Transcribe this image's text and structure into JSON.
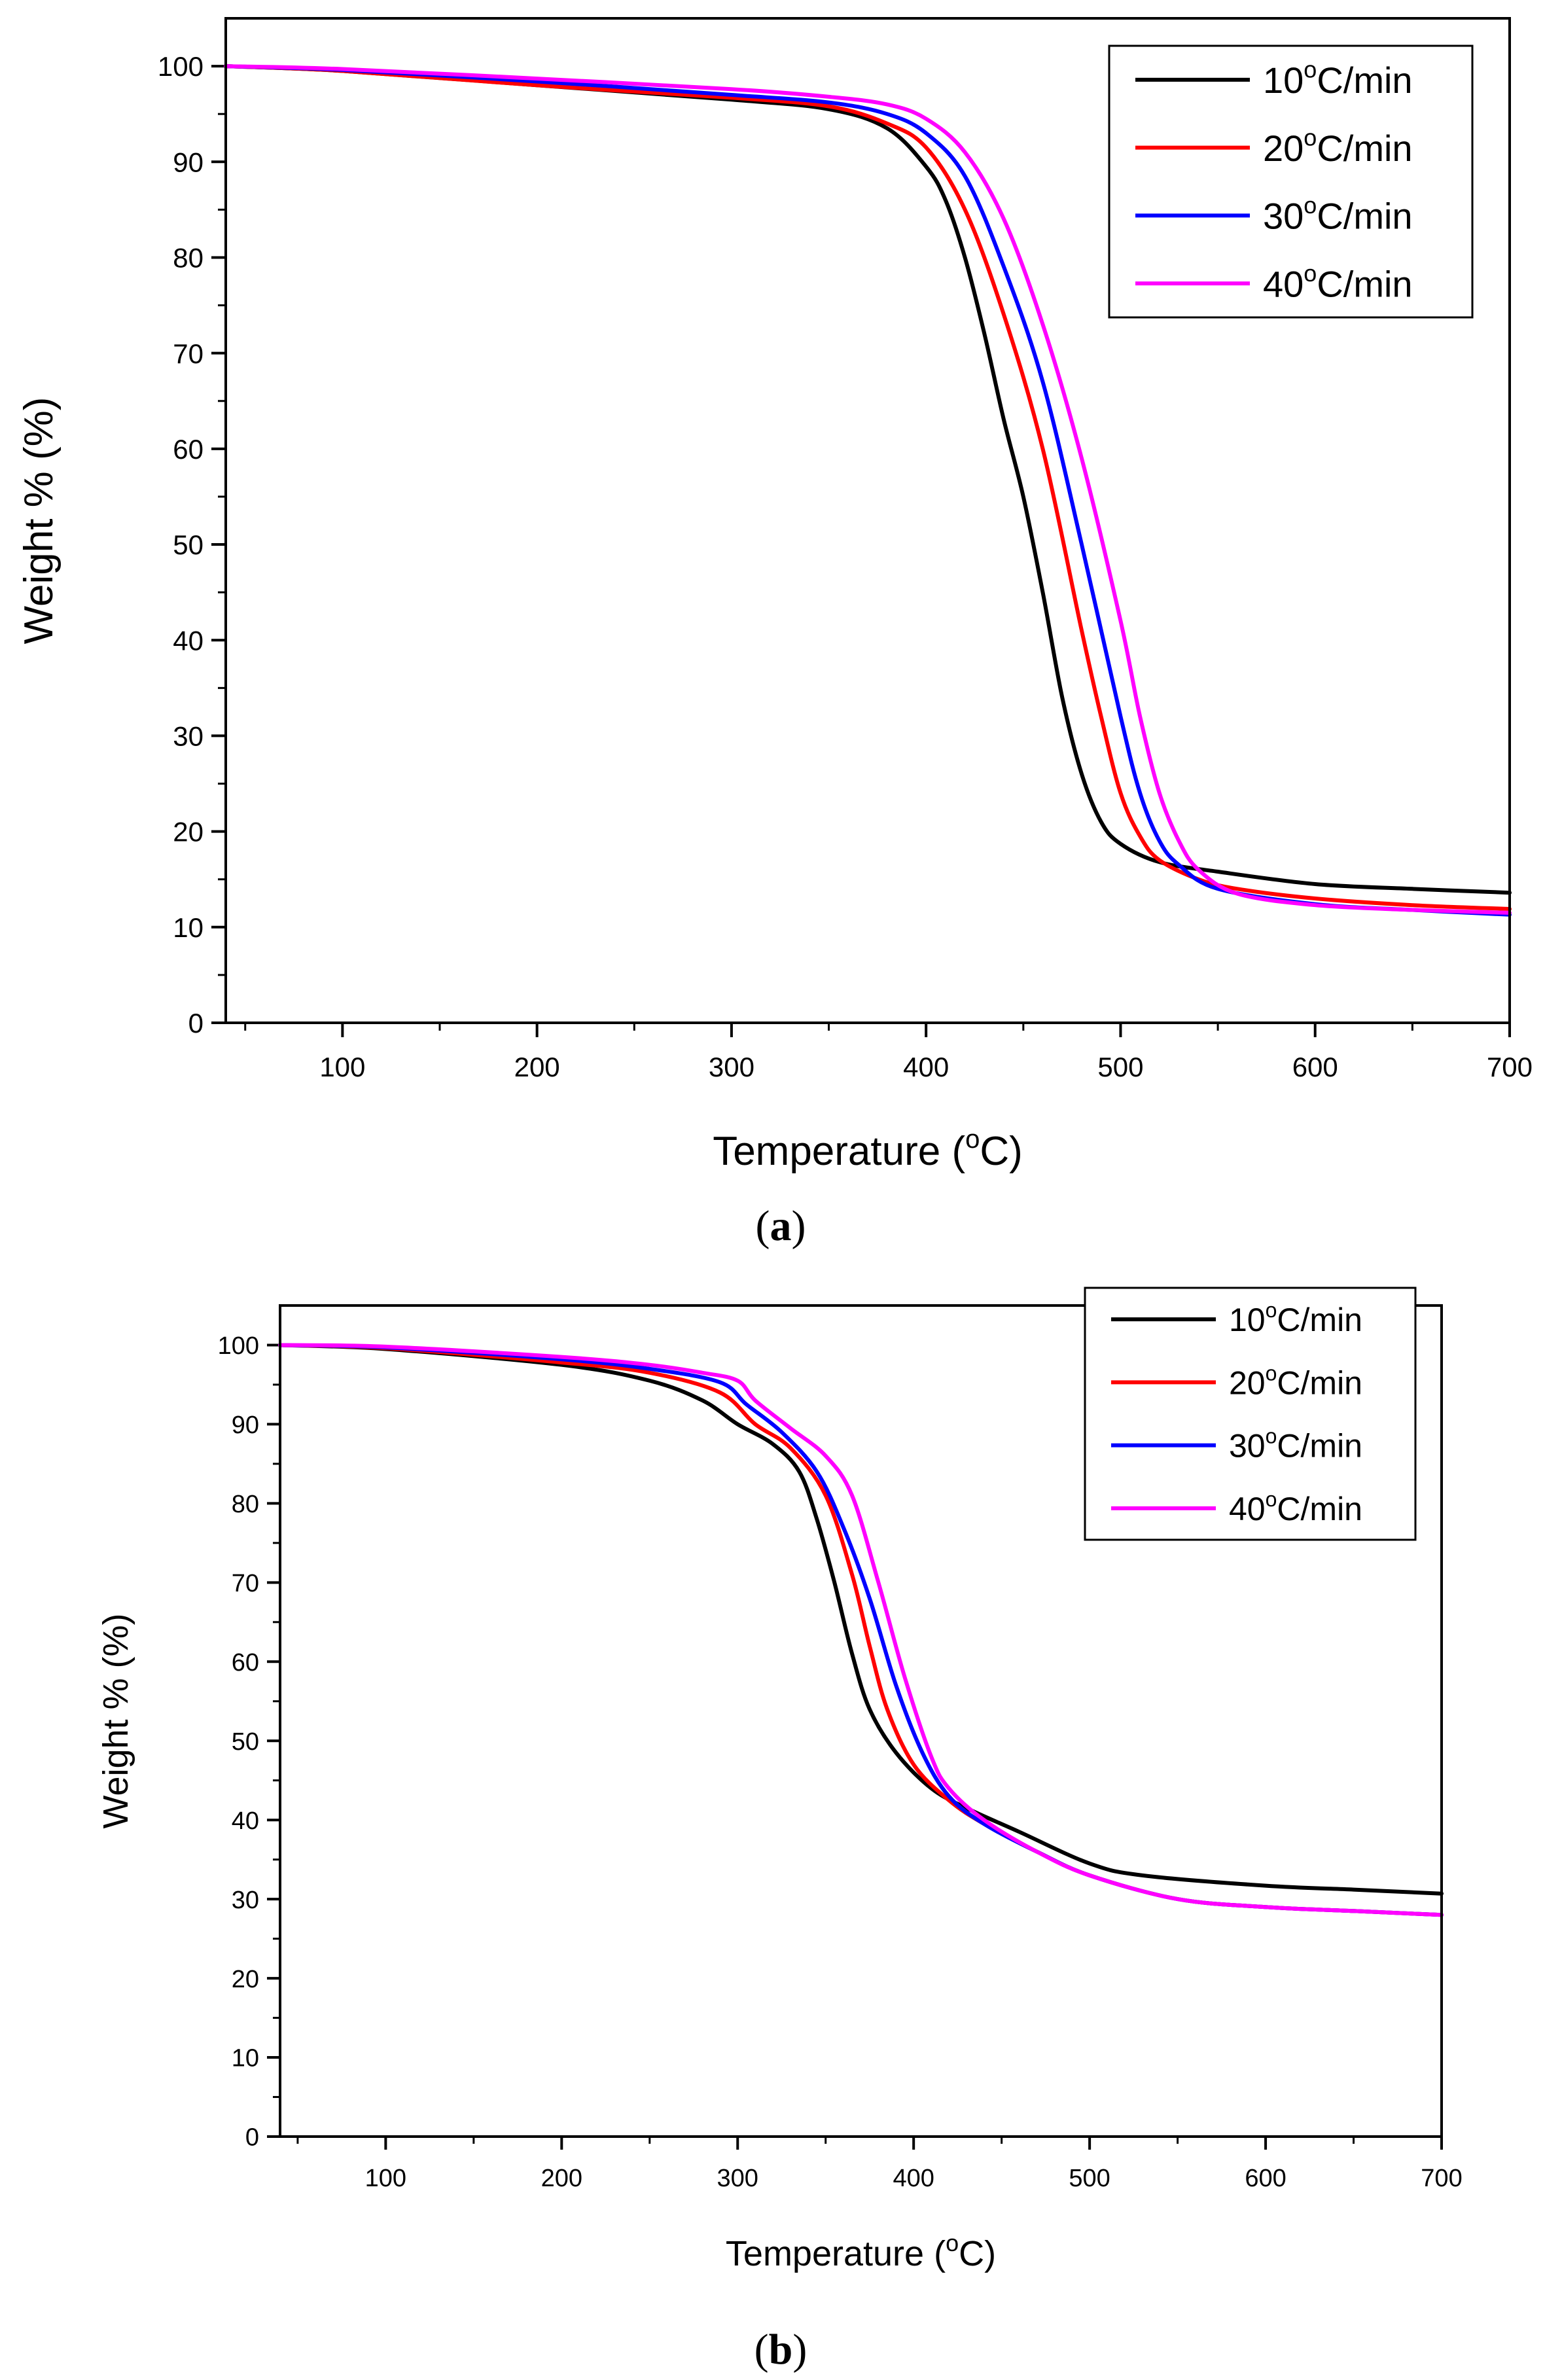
{
  "chart_data": [
    {
      "type": "line",
      "panel_label": "a",
      "xlabel": "Temperature (°C)",
      "xlabel_parts": {
        "pre": "Temperature (",
        "sup": "o",
        "post": "C)"
      },
      "ylabel": "Weight % (%)",
      "xlim": [
        40,
        700
      ],
      "ylim": [
        0,
        105
      ],
      "xticks": [
        100,
        200,
        300,
        400,
        500,
        600,
        700
      ],
      "yticks": [
        0,
        10,
        20,
        30,
        40,
        50,
        60,
        70,
        80,
        90,
        100
      ],
      "legend_position": "top-right",
      "series": [
        {
          "name": "10°C/min",
          "label_parts": {
            "pre": "10",
            "sup": "o",
            "post": "C/min"
          },
          "color": "#000000",
          "points": [
            [
              40,
              100
            ],
            [
              100,
              99.5
            ],
            [
              200,
              98
            ],
            [
              300,
              96.5
            ],
            [
              350,
              95.5
            ],
            [
              380,
              93.5
            ],
            [
              400,
              89.5
            ],
            [
              410,
              86
            ],
            [
              420,
              80
            ],
            [
              430,
              72
            ],
            [
              440,
              63
            ],
            [
              450,
              55
            ],
            [
              460,
              45
            ],
            [
              470,
              34
            ],
            [
              480,
              26
            ],
            [
              490,
              21
            ],
            [
              500,
              18.7
            ],
            [
              520,
              16.8
            ],
            [
              550,
              15.8
            ],
            [
              600,
              14.5
            ],
            [
              650,
              14
            ],
            [
              700,
              13.6
            ]
          ]
        },
        {
          "name": "20°C/min",
          "label_parts": {
            "pre": "20",
            "sup": "o",
            "post": "C/min"
          },
          "color": "#ff0000",
          "points": [
            [
              40,
              100
            ],
            [
              100,
              99.5
            ],
            [
              200,
              98
            ],
            [
              300,
              96.7
            ],
            [
              350,
              95.8
            ],
            [
              380,
              94
            ],
            [
              400,
              91.5
            ],
            [
              420,
              85
            ],
            [
              440,
              74
            ],
            [
              460,
              60
            ],
            [
              480,
              41
            ],
            [
              490,
              32
            ],
            [
              500,
              24
            ],
            [
              510,
              19.5
            ],
            [
              520,
              17
            ],
            [
              540,
              15
            ],
            [
              560,
              14
            ],
            [
              600,
              13
            ],
            [
              650,
              12.3
            ],
            [
              700,
              11.9
            ]
          ]
        },
        {
          "name": "30°C/min",
          "label_parts": {
            "pre": "30",
            "sup": "o",
            "post": "C/min"
          },
          "color": "#0000ff",
          "points": [
            [
              40,
              100
            ],
            [
              100,
              99.6
            ],
            [
              200,
              98.4
            ],
            [
              300,
              97
            ],
            [
              350,
              96.2
            ],
            [
              380,
              95
            ],
            [
              400,
              93
            ],
            [
              420,
              88.5
            ],
            [
              440,
              79
            ],
            [
              460,
              67
            ],
            [
              480,
              50
            ],
            [
              500,
              32
            ],
            [
              510,
              24
            ],
            [
              520,
              19
            ],
            [
              530,
              16.5
            ],
            [
              550,
              14
            ],
            [
              600,
              12.4
            ],
            [
              650,
              11.8
            ],
            [
              700,
              11.3
            ]
          ]
        },
        {
          "name": "40°C/min",
          "label_parts": {
            "pre": "40",
            "sup": "o",
            "post": "C/min"
          },
          "color": "#ff00ff",
          "points": [
            [
              40,
              100
            ],
            [
              100,
              99.7
            ],
            [
              200,
              98.7
            ],
            [
              300,
              97.6
            ],
            [
              350,
              96.8
            ],
            [
              380,
              96
            ],
            [
              400,
              94.5
            ],
            [
              420,
              91
            ],
            [
              440,
              84
            ],
            [
              460,
              73
            ],
            [
              480,
              59
            ],
            [
              500,
              42
            ],
            [
              510,
              32
            ],
            [
              520,
              24
            ],
            [
              530,
              19
            ],
            [
              540,
              16
            ],
            [
              560,
              13.5
            ],
            [
              600,
              12.3
            ],
            [
              650,
              11.8
            ],
            [
              700,
              11.5
            ]
          ]
        }
      ]
    },
    {
      "type": "line",
      "panel_label": "b",
      "xlabel": "Temperature (°C)",
      "xlabel_parts": {
        "pre": "Temperature (",
        "sup": "o",
        "post": "C)"
      },
      "ylabel": "Weight % (%)",
      "xlim": [
        40,
        700
      ],
      "ylim": [
        0,
        105
      ],
      "xticks": [
        100,
        200,
        300,
        400,
        500,
        600,
        700
      ],
      "yticks": [
        0,
        10,
        20,
        30,
        40,
        50,
        60,
        70,
        80,
        90,
        100
      ],
      "legend_position": "top-right",
      "series": [
        {
          "name": "10°C/min",
          "label_parts": {
            "pre": "10",
            "sup": "o",
            "post": "C/min"
          },
          "color": "#000000",
          "points": [
            [
              40,
              100
            ],
            [
              100,
              99.5
            ],
            [
              200,
              97.5
            ],
            [
              250,
              95.5
            ],
            [
              280,
              93
            ],
            [
              300,
              90
            ],
            [
              320,
              87.5
            ],
            [
              335,
              84
            ],
            [
              345,
              78
            ],
            [
              355,
              70
            ],
            [
              365,
              61
            ],
            [
              375,
              54
            ],
            [
              390,
              48.5
            ],
            [
              410,
              44
            ],
            [
              430,
              41.5
            ],
            [
              460,
              38.5
            ],
            [
              500,
              34.5
            ],
            [
              530,
              33
            ],
            [
              600,
              31.7
            ],
            [
              650,
              31.2
            ],
            [
              700,
              30.7
            ]
          ]
        },
        {
          "name": "20°C/min",
          "label_parts": {
            "pre": "20",
            "sup": "o",
            "post": "C/min"
          },
          "color": "#ff0000",
          "points": [
            [
              40,
              100
            ],
            [
              100,
              99.6
            ],
            [
              200,
              97.8
            ],
            [
              250,
              96.5
            ],
            [
              290,
              94
            ],
            [
              310,
              90
            ],
            [
              330,
              87
            ],
            [
              350,
              81
            ],
            [
              365,
              71
            ],
            [
              375,
              62
            ],
            [
              385,
              54
            ],
            [
              400,
              47
            ],
            [
              420,
              42.5
            ],
            [
              440,
              39.5
            ],
            [
              470,
              36
            ],
            [
              500,
              33
            ],
            [
              550,
              30
            ],
            [
              600,
              29
            ],
            [
              650,
              28.5
            ],
            [
              700,
              28
            ]
          ]
        },
        {
          "name": "30°C/min",
          "label_parts": {
            "pre": "30",
            "sup": "o",
            "post": "C/min"
          },
          "color": "#0000ff",
          "points": [
            [
              40,
              100
            ],
            [
              100,
              99.7
            ],
            [
              200,
              98.2
            ],
            [
              250,
              97
            ],
            [
              290,
              95.3
            ],
            [
              305,
              92.5
            ],
            [
              325,
              89
            ],
            [
              345,
              84
            ],
            [
              360,
              77
            ],
            [
              375,
              68
            ],
            [
              390,
              57
            ],
            [
              405,
              48.5
            ],
            [
              420,
              43
            ],
            [
              440,
              39.5
            ],
            [
              470,
              36
            ],
            [
              500,
              33
            ],
            [
              550,
              30
            ],
            [
              600,
              29
            ],
            [
              650,
              28.5
            ],
            [
              700,
              28
            ]
          ]
        },
        {
          "name": "40°C/min",
          "label_parts": {
            "pre": "40",
            "sup": "o",
            "post": "C/min"
          },
          "color": "#ff00ff",
          "points": [
            [
              40,
              100
            ],
            [
              100,
              99.8
            ],
            [
              200,
              98.5
            ],
            [
              250,
              97.5
            ],
            [
              280,
              96.5
            ],
            [
              300,
              95.5
            ],
            [
              310,
              93
            ],
            [
              330,
              89.5
            ],
            [
              350,
              86
            ],
            [
              365,
              81
            ],
            [
              380,
              70
            ],
            [
              395,
              58
            ],
            [
              410,
              48
            ],
            [
              420,
              44
            ],
            [
              440,
              40
            ],
            [
              470,
              36
            ],
            [
              500,
              33
            ],
            [
              550,
              30
            ],
            [
              600,
              29
            ],
            [
              650,
              28.5
            ],
            [
              700,
              28
            ]
          ]
        }
      ]
    }
  ]
}
